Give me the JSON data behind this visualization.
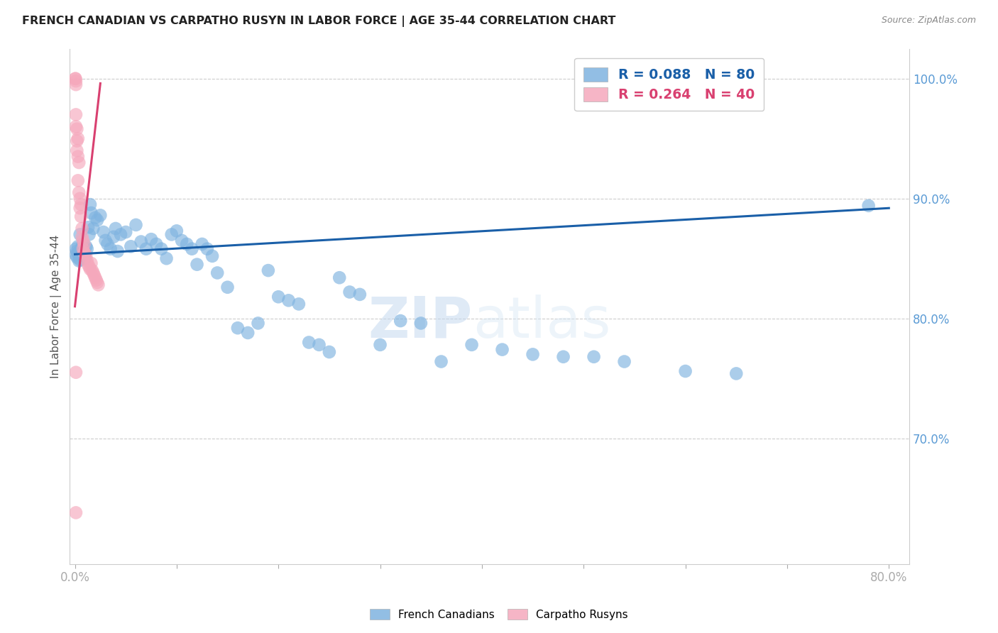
{
  "title": "FRENCH CANADIAN VS CARPATHO RUSYN IN LABOR FORCE | AGE 35-44 CORRELATION CHART",
  "source": "Source: ZipAtlas.com",
  "ylabel": "In Labor Force | Age 35-44",
  "xlim": [
    -0.005,
    0.82
  ],
  "ylim": [
    0.595,
    1.025
  ],
  "yticks_right": [
    0.7,
    0.8,
    0.9,
    1.0
  ],
  "blue_color": "#7fb3e0",
  "pink_color": "#f5a8bc",
  "blue_line_color": "#1a5fa8",
  "pink_line_color": "#d94070",
  "R_blue": 0.088,
  "N_blue": 80,
  "R_pink": 0.264,
  "N_pink": 40,
  "watermark_zip": "ZIP",
  "watermark_atlas": "atlas",
  "blue_x": [
    0.001,
    0.001,
    0.002,
    0.002,
    0.003,
    0.003,
    0.004,
    0.004,
    0.005,
    0.005,
    0.006,
    0.007,
    0.008,
    0.009,
    0.01,
    0.01,
    0.011,
    0.012,
    0.013,
    0.014,
    0.015,
    0.016,
    0.018,
    0.02,
    0.022,
    0.025,
    0.028,
    0.03,
    0.032,
    0.035,
    0.038,
    0.04,
    0.042,
    0.045,
    0.05,
    0.055,
    0.06,
    0.065,
    0.07,
    0.075,
    0.08,
    0.085,
    0.09,
    0.095,
    0.1,
    0.105,
    0.11,
    0.115,
    0.12,
    0.125,
    0.13,
    0.135,
    0.14,
    0.15,
    0.16,
    0.17,
    0.18,
    0.19,
    0.2,
    0.21,
    0.22,
    0.23,
    0.24,
    0.25,
    0.26,
    0.27,
    0.28,
    0.3,
    0.32,
    0.34,
    0.36,
    0.39,
    0.42,
    0.45,
    0.48,
    0.51,
    0.54,
    0.6,
    0.65,
    0.78
  ],
  "blue_y": [
    0.858,
    0.853,
    0.856,
    0.851,
    0.86,
    0.854,
    0.848,
    0.855,
    0.87,
    0.849,
    0.858,
    0.855,
    0.862,
    0.856,
    0.854,
    0.85,
    0.86,
    0.858,
    0.876,
    0.87,
    0.895,
    0.888,
    0.875,
    0.884,
    0.882,
    0.886,
    0.872,
    0.865,
    0.862,
    0.858,
    0.868,
    0.875,
    0.856,
    0.87,
    0.872,
    0.86,
    0.878,
    0.864,
    0.858,
    0.866,
    0.862,
    0.858,
    0.85,
    0.87,
    0.873,
    0.865,
    0.862,
    0.858,
    0.845,
    0.862,
    0.858,
    0.852,
    0.838,
    0.826,
    0.792,
    0.788,
    0.796,
    0.84,
    0.818,
    0.815,
    0.812,
    0.78,
    0.778,
    0.772,
    0.834,
    0.822,
    0.82,
    0.778,
    0.798,
    0.796,
    0.764,
    0.778,
    0.774,
    0.77,
    0.768,
    0.768,
    0.764,
    0.756,
    0.754,
    0.894
  ],
  "pink_x": [
    0.0005,
    0.0005,
    0.001,
    0.001,
    0.001,
    0.001,
    0.002,
    0.002,
    0.002,
    0.003,
    0.003,
    0.003,
    0.004,
    0.004,
    0.005,
    0.005,
    0.006,
    0.006,
    0.007,
    0.007,
    0.008,
    0.008,
    0.009,
    0.009,
    0.01,
    0.011,
    0.012,
    0.013,
    0.014,
    0.015,
    0.016,
    0.017,
    0.018,
    0.019,
    0.02,
    0.021,
    0.022,
    0.023,
    0.001,
    0.001
  ],
  "pink_y": [
    1.0,
    1.0,
    0.998,
    0.995,
    0.97,
    0.96,
    0.958,
    0.948,
    0.94,
    0.95,
    0.935,
    0.915,
    0.905,
    0.93,
    0.9,
    0.892,
    0.885,
    0.895,
    0.875,
    0.868,
    0.865,
    0.858,
    0.855,
    0.862,
    0.854,
    0.852,
    0.848,
    0.845,
    0.843,
    0.841,
    0.846,
    0.84,
    0.838,
    0.836,
    0.834,
    0.832,
    0.83,
    0.828,
    0.755,
    0.638
  ],
  "blue_line_x": [
    0.0,
    0.8
  ],
  "blue_line_y": [
    0.8535,
    0.892
  ],
  "pink_line_x": [
    0.0,
    0.025
  ],
  "pink_line_y": [
    0.81,
    0.996
  ]
}
